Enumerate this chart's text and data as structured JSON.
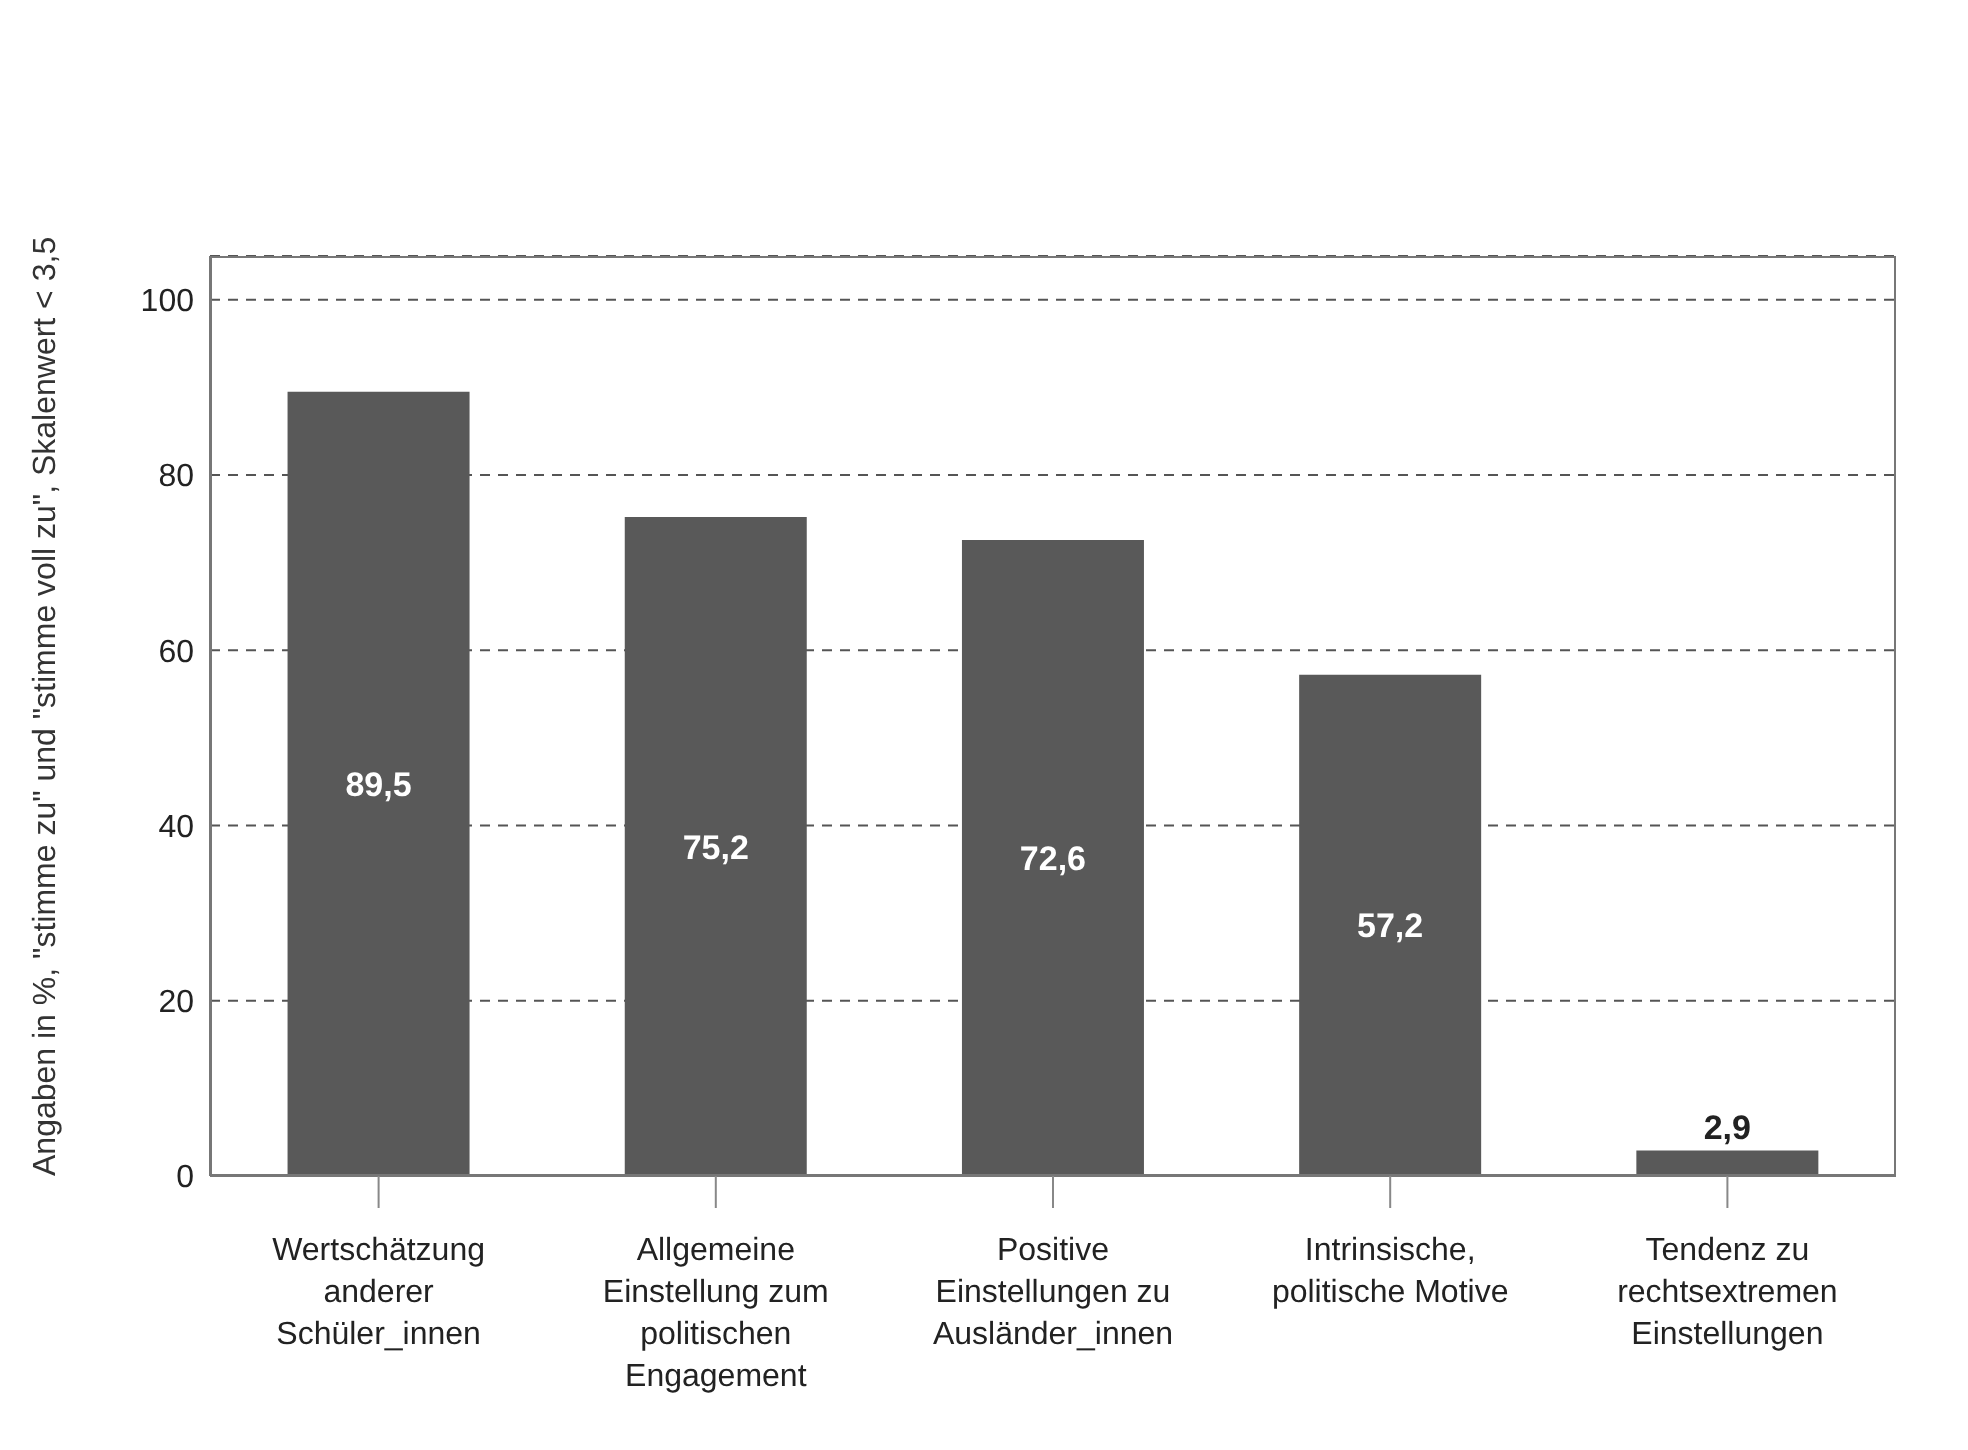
{
  "chart_data": {
    "type": "bar",
    "ylabel": "Angaben in %, \"stimme zu\" und \"stimme voll zu\", Skalenwert < 3,5",
    "categories": [
      "Wertschätzung anderer Schüler_innen",
      "Allgemeine Einstellung zum politischen Engagement",
      "Positive Einstellungen zu Ausländer_innen",
      "Intrinsische, politische Motive",
      "Tendenz zu rechtsextremen Einstellungen"
    ],
    "values": [
      89.5,
      75.2,
      72.6,
      57.2,
      2.9
    ],
    "value_labels": [
      "89,5",
      "75,2",
      "72,6",
      "57,2",
      "2,9"
    ],
    "color": "#595959",
    "ylim": [
      0,
      105
    ],
    "yticks": [
      0,
      20,
      40,
      60,
      80,
      100
    ],
    "grid": "y",
    "legend": false
  }
}
